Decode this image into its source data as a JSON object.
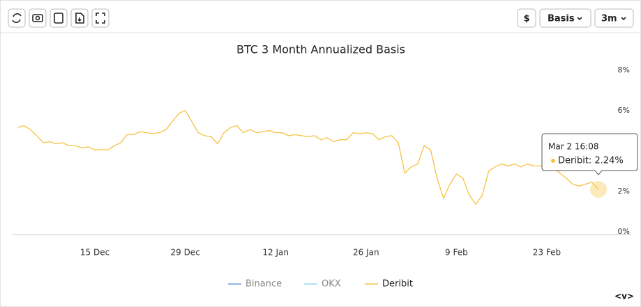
{
  "toolbar": {
    "currency": "$",
    "metric": "Basis",
    "range": "3m"
  },
  "chart_data": {
    "type": "line",
    "title": "BTC 3 Month Annualized Basis",
    "categories": [
      null,
      null,
      null,
      null,
      null,
      null,
      null,
      null,
      null,
      null,
      null,
      null,
      "15 Dec",
      null,
      null,
      null,
      null,
      null,
      null,
      null,
      null,
      null,
      null,
      null,
      null,
      null,
      "29 Dec",
      null,
      null,
      null,
      null,
      null,
      null,
      null,
      null,
      null,
      null,
      null,
      null,
      null,
      "12 Jan",
      null,
      null,
      null,
      null,
      null,
      null,
      null,
      null,
      null,
      null,
      null,
      null,
      null,
      "26 Jan",
      null,
      null,
      null,
      null,
      null,
      null,
      null,
      null,
      null,
      null,
      null,
      null,
      null,
      "9 Feb",
      null,
      null,
      null,
      null,
      null,
      null,
      null,
      null,
      null,
      null,
      null,
      null,
      null,
      "23 Feb",
      null,
      null,
      null,
      null,
      null,
      null,
      null,
      null
    ],
    "series": [
      {
        "name": "Deribit",
        "color": "#f5c243",
        "values": [
          5.3,
          5.4,
          5.2,
          4.9,
          4.55,
          4.6,
          4.5,
          4.55,
          4.4,
          4.4,
          4.3,
          4.35,
          4.2,
          4.2,
          4.2,
          4.4,
          4.55,
          4.95,
          4.95,
          5.1,
          5.05,
          5.0,
          5.05,
          5.2,
          5.6,
          6.0,
          6.15,
          5.6,
          5.05,
          4.9,
          4.85,
          4.5,
          5.05,
          5.3,
          5.4,
          5.05,
          5.2,
          5.05,
          5.1,
          5.15,
          5.05,
          5.05,
          4.9,
          4.95,
          4.9,
          4.85,
          4.9,
          4.7,
          4.8,
          4.6,
          4.7,
          4.7,
          5.05,
          5.0,
          5.05,
          5.0,
          4.7,
          4.85,
          4.9,
          4.55,
          3.05,
          3.35,
          3.5,
          4.4,
          4.2,
          2.8,
          1.8,
          2.5,
          3.0,
          2.8,
          1.95,
          1.5,
          1.95,
          3.15,
          3.35,
          3.5,
          3.4,
          3.5,
          3.35,
          3.5,
          3.4,
          3.4,
          3.5,
          3.35,
          3.05,
          2.8,
          2.5,
          2.4,
          2.5,
          2.6,
          2.24
        ]
      }
    ],
    "hidden_series": [
      {
        "name": "Binance",
        "color": "#6a9fd8"
      },
      {
        "name": "OKX",
        "color": "#9ad6ef"
      }
    ],
    "ylim": [
      0,
      8
    ],
    "yticks": [
      {
        "value": 0,
        "label": "0%"
      },
      {
        "value": 2,
        "label": "2%"
      },
      {
        "value": 4,
        "label": "4%"
      },
      {
        "value": 6,
        "label": "6%"
      },
      {
        "value": 8,
        "label": "8%"
      }
    ],
    "grid": false,
    "tooltip": {
      "title": "Mar 2 16:08",
      "text": "Deribit: 2.24%"
    }
  },
  "nav": "<v>"
}
